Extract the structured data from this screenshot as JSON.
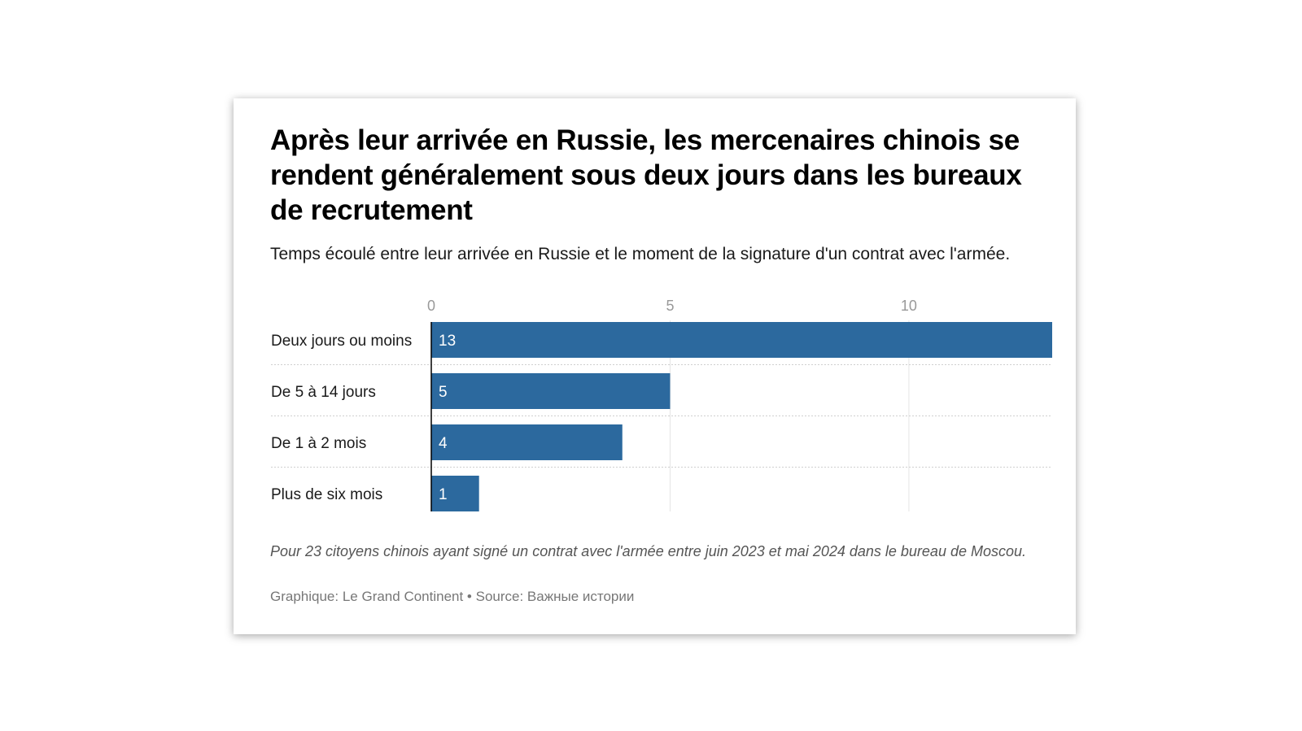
{
  "title": "Après leur arrivée en Russie, les mercenaires chinois se rendent généralement sous deux jours dans les bureaux de recrutement",
  "subtitle": "Temps écoulé entre leur arrivée en Russie et le moment de la signature d'un contrat avec l'armée.",
  "notes": "Pour 23 citoyens chinois ayant signé un contrat avec l'armée entre juin 2023 et mai 2024 dans le bureau de Moscou.",
  "source": "Graphique: Le Grand Continent • Source: Важные истории",
  "colors": {
    "bar": "#2c699e",
    "bar_label": "#ffffff",
    "grid": "#e4e4e4",
    "tick": "#999999",
    "category": "#1a1a1a"
  },
  "chart_data": {
    "type": "bar",
    "orientation": "horizontal",
    "categories": [
      "Deux jours ou moins",
      "De 5 à 14 jours",
      "De 1 à 2 mois",
      "Plus de six mois"
    ],
    "values": [
      13,
      5,
      4,
      1
    ],
    "xticks": [
      0,
      5,
      10
    ],
    "xlim": [
      0,
      13
    ],
    "grid": true,
    "data_labels": true
  }
}
